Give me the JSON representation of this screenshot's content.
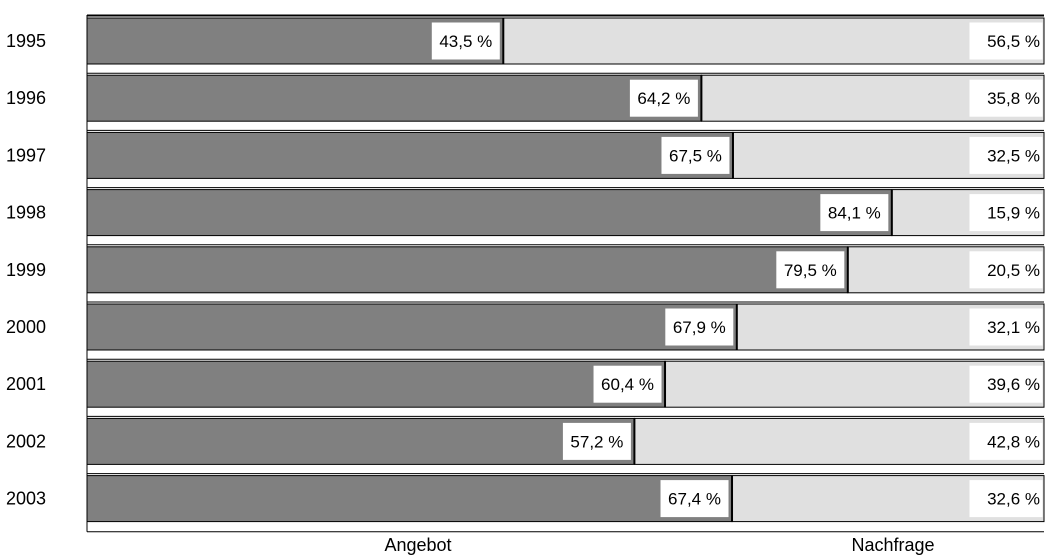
{
  "chart_data": {
    "type": "bar",
    "stacked": true,
    "orientation": "horizontal",
    "percent_stacked": true,
    "categories": [
      "1995",
      "1996",
      "1997",
      "1998",
      "1999",
      "2000",
      "2001",
      "2002",
      "2003"
    ],
    "series": [
      {
        "name": "Angebot",
        "values": [
          43.5,
          64.2,
          67.5,
          84.1,
          79.5,
          67.9,
          60.4,
          57.2,
          67.4
        ],
        "labels": [
          "43,5 %",
          "64,2 %",
          "67,5 %",
          "84,1 %",
          "79,5 %",
          "67,9 %",
          "60,4 %",
          "57,2 %",
          "67,4 %"
        ],
        "color": "#808080"
      },
      {
        "name": "Nachfrage",
        "values": [
          56.5,
          35.8,
          32.5,
          15.9,
          20.5,
          32.1,
          39.6,
          42.8,
          32.6
        ],
        "labels": [
          "56,5 %",
          "35,8 %",
          "32,5 %",
          "15,9 %",
          "20,5 %",
          "32,1 %",
          "39,6 %",
          "42,8 %",
          "32,6 %"
        ],
        "color": "#e0e0e0"
      }
    ],
    "xlim": [
      0,
      100
    ],
    "legend": [
      "Angebot",
      "Nachfrage"
    ],
    "legend_position": "bottom",
    "grid": false
  }
}
